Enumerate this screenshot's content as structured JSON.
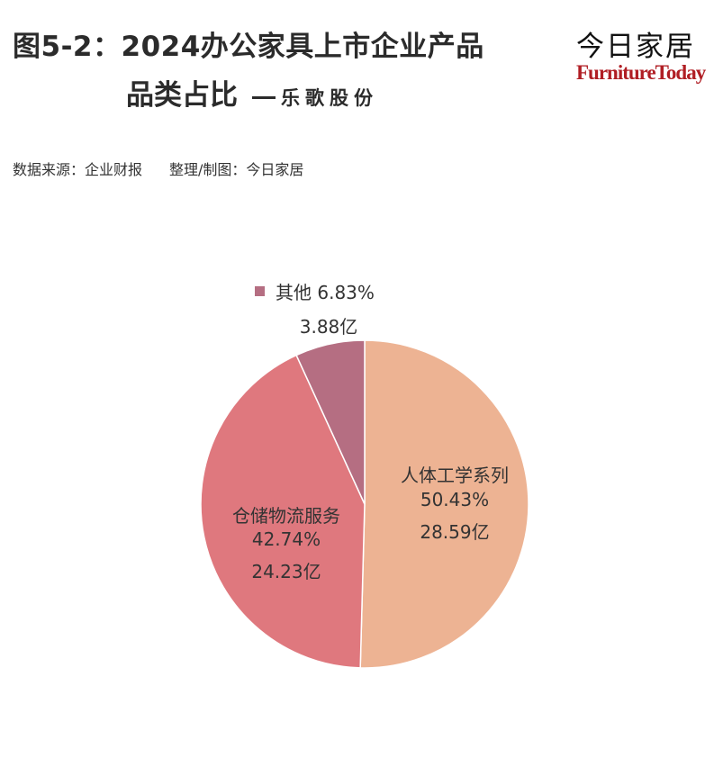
{
  "header": {
    "title_line1": "图5-2：2024办公家具上市企业产品",
    "title_line2": "品类占比",
    "company": "乐歌股份"
  },
  "logo": {
    "cn": "今日家居",
    "en": "FurnitureToday",
    "en_color": "#b01e24"
  },
  "source": {
    "data_source": "数据来源：企业财报",
    "credit": "整理/制图：今日家居"
  },
  "chart_data": {
    "type": "pie",
    "unit": "亿",
    "slices": [
      {
        "name": "人体工学系列",
        "percent": "50.43%",
        "value": 28.59,
        "value_label": "28.59亿",
        "color": "#edb393"
      },
      {
        "name": "仓储物流服务",
        "percent": "42.74%",
        "value": 24.23,
        "value_label": "24.23亿",
        "color": "#df787e"
      },
      {
        "name": "其他",
        "percent": "6.83%",
        "value": 3.88,
        "value_label": "3.88亿",
        "color": "#b56e82"
      }
    ]
  }
}
